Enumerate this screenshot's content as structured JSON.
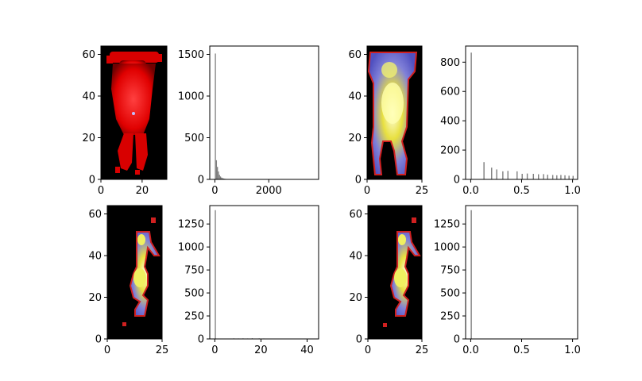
{
  "figure": {
    "background": "#ffffff"
  },
  "chart_data": [
    {
      "type": "heatmap",
      "id": "img-top-left",
      "xlim": [
        0,
        32
      ],
      "ylim": [
        0,
        64
      ],
      "xticks": [
        "0",
        "20"
      ],
      "yticks": [
        "0",
        "20",
        "40",
        "60"
      ],
      "colormap": "black-red"
    },
    {
      "type": "bar",
      "id": "hist-top-left",
      "xlim": [
        -190,
        3850
      ],
      "ylim": [
        0,
        1600
      ],
      "xticks": [
        "0",
        "2000"
      ],
      "yticks": [
        "0",
        "500",
        "1000",
        "1500"
      ],
      "bar_color": "#7f7f7f",
      "bin_width": 38,
      "bins": [
        [
          0,
          1510
        ],
        [
          38,
          230
        ],
        [
          76,
          150
        ],
        [
          114,
          95
        ],
        [
          152,
          55
        ],
        [
          190,
          35
        ],
        [
          228,
          22
        ],
        [
          266,
          15
        ],
        [
          304,
          11
        ],
        [
          342,
          8
        ],
        [
          380,
          6
        ],
        [
          420,
          5
        ],
        [
          470,
          4
        ],
        [
          520,
          3
        ],
        [
          600,
          3
        ],
        [
          700,
          2
        ],
        [
          800,
          2
        ],
        [
          1000,
          1
        ]
      ]
    },
    {
      "type": "heatmap",
      "id": "img-top-right",
      "xlim": [
        0,
        25
      ],
      "ylim": [
        0,
        64
      ],
      "xticks": [
        "0",
        "25"
      ],
      "yticks": [
        "0",
        "20",
        "40",
        "60"
      ],
      "colormap": "black-blue-yellow-white"
    },
    {
      "type": "bar",
      "id": "hist-top-right",
      "xlim": [
        -0.05,
        1.05
      ],
      "ylim": [
        0,
        910
      ],
      "xticks": [
        "0.0",
        "0.5",
        "1.0"
      ],
      "yticks": [
        "0",
        "200",
        "400",
        "600",
        "800"
      ],
      "bar_color": "#7f7f7f",
      "bin_width": 0.011,
      "bins": [
        [
          0.0,
          865
        ],
        [
          0.125,
          118
        ],
        [
          0.2,
          80
        ],
        [
          0.25,
          68
        ],
        [
          0.31,
          55
        ],
        [
          0.36,
          58
        ],
        [
          0.45,
          55
        ],
        [
          0.5,
          38
        ],
        [
          0.55,
          40
        ],
        [
          0.61,
          38
        ],
        [
          0.66,
          35
        ],
        [
          0.71,
          36
        ],
        [
          0.75,
          32
        ],
        [
          0.8,
          30
        ],
        [
          0.84,
          28
        ],
        [
          0.88,
          30
        ],
        [
          0.92,
          28
        ],
        [
          0.96,
          25
        ],
        [
          1.0,
          24
        ]
      ]
    },
    {
      "type": "heatmap",
      "id": "img-bottom-left",
      "xlim": [
        0,
        25
      ],
      "ylim": [
        0,
        64
      ],
      "xticks": [
        "0",
        "25"
      ],
      "yticks": [
        "0",
        "20",
        "40",
        "60"
      ],
      "colormap": "black-blue-yellow-white"
    },
    {
      "type": "bar",
      "id": "hist-bottom-left",
      "xlim": [
        -2.2,
        45
      ],
      "ylim": [
        0,
        1450
      ],
      "xticks": [
        "0",
        "20",
        "40"
      ],
      "yticks": [
        "0",
        "250",
        "500",
        "750",
        "1000",
        "1250"
      ],
      "bar_color": "#7f7f7f",
      "bin_width": 0.45,
      "bins": [
        [
          0,
          1400
        ],
        [
          8,
          6
        ],
        [
          10,
          5
        ],
        [
          12,
          6
        ],
        [
          14,
          5
        ],
        [
          16,
          7
        ],
        [
          19,
          6
        ],
        [
          21,
          5
        ],
        [
          24,
          4
        ],
        [
          27,
          3
        ],
        [
          31,
          3
        ],
        [
          36,
          2
        ],
        [
          41,
          2
        ]
      ]
    },
    {
      "type": "heatmap",
      "id": "img-bottom-right",
      "xlim": [
        0,
        25
      ],
      "ylim": [
        0,
        64
      ],
      "xticks": [
        "0",
        "25"
      ],
      "yticks": [
        "0",
        "20",
        "40",
        "60"
      ],
      "colormap": "black-blue-yellow-white"
    },
    {
      "type": "bar",
      "id": "hist-bottom-right",
      "xlim": [
        -0.05,
        1.05
      ],
      "ylim": [
        0,
        1450
      ],
      "xticks": [
        "0.0",
        "0.5",
        "1.0"
      ],
      "yticks": [
        "0",
        "250",
        "500",
        "750",
        "1000",
        "1250"
      ],
      "bar_color": "#7f7f7f",
      "bin_width": 0.011,
      "bins": [
        [
          0,
          1400
        ],
        [
          0.12,
          4
        ],
        [
          0.36,
          4
        ],
        [
          0.48,
          3
        ],
        [
          0.55,
          3
        ],
        [
          0.7,
          3
        ],
        [
          0.98,
          2
        ]
      ]
    }
  ]
}
